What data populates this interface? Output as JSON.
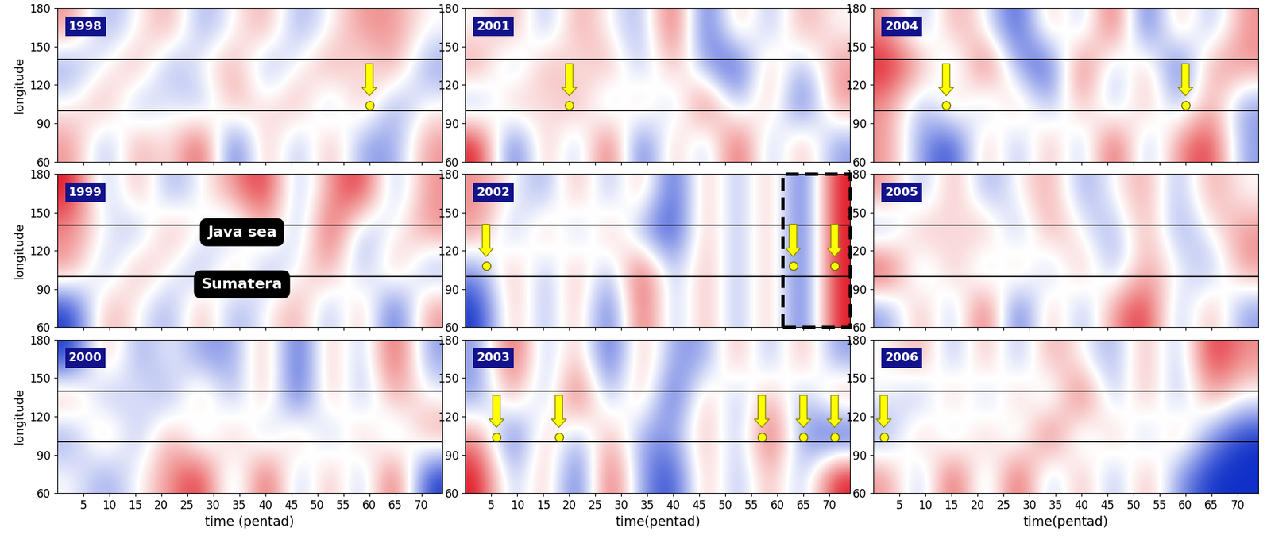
{
  "chart_data": [
    {
      "type": "heatmap",
      "title": "1998",
      "xlim": [
        0,
        74
      ],
      "ylim": [
        60,
        180
      ],
      "xticks": [
        5,
        10,
        15,
        20,
        25,
        30,
        35,
        40,
        45,
        50,
        55,
        60,
        65,
        70
      ],
      "yticks": [
        60,
        90,
        120,
        150,
        180
      ],
      "ylabel": "longitude",
      "tick_labels": "y",
      "clim": [
        -2,
        2
      ],
      "hlines": [
        100,
        140
      ],
      "events": [
        {
          "x": 60,
          "y": 104
        }
      ],
      "cells": [
        [
          1,
          -1,
          1,
          0,
          2,
          -2,
          1,
          -1,
          1,
          -1,
          -1,
          1
        ],
        [
          0,
          1,
          -1,
          0,
          -1,
          1,
          0,
          1,
          -1,
          1,
          -1,
          0
        ],
        [
          -1,
          0,
          1,
          -1,
          0,
          1,
          -1,
          0,
          1,
          0,
          1,
          -1
        ],
        [
          1,
          -1,
          0,
          1,
          -1,
          0,
          1,
          -1,
          0,
          1,
          1,
          0
        ]
      ]
    },
    {
      "type": "heatmap",
      "title": "2001",
      "xlim": [
        0,
        74
      ],
      "ylim": [
        60,
        180
      ],
      "xticks": [
        5,
        10,
        15,
        20,
        25,
        30,
        35,
        40,
        45,
        50,
        55,
        60,
        65,
        70
      ],
      "yticks": [
        60,
        90,
        120,
        150,
        180
      ],
      "tick_labels": "y",
      "clim": [
        -2,
        2
      ],
      "hlines": [
        100,
        140
      ],
      "events": [
        {
          "x": 20,
          "y": 104
        }
      ],
      "cells": [
        [
          2,
          -2,
          1,
          -1,
          2,
          -2,
          1,
          -1,
          2,
          -1,
          1,
          -1
        ],
        [
          -1,
          1,
          0,
          1,
          -1,
          1,
          -1,
          2,
          -1,
          1,
          -2,
          1
        ],
        [
          1,
          -1,
          1,
          0,
          1,
          -1,
          1,
          -1,
          -2,
          1,
          -1,
          1
        ],
        [
          0,
          1,
          -1,
          1,
          0,
          -1,
          2,
          -2,
          1,
          -1,
          1,
          0
        ]
      ]
    },
    {
      "type": "heatmap",
      "title": "2004",
      "xlim": [
        0,
        74
      ],
      "ylim": [
        60,
        180
      ],
      "xticks": [
        5,
        10,
        15,
        20,
        25,
        30,
        35,
        40,
        45,
        50,
        55,
        60,
        65,
        70
      ],
      "yticks": [
        60,
        90,
        120,
        150,
        180
      ],
      "tick_labels": "y",
      "clim": [
        -2,
        2
      ],
      "hlines": [
        100,
        140
      ],
      "events": [
        {
          "x": 14,
          "y": 104
        },
        {
          "x": 60,
          "y": 104
        }
      ],
      "cells": [
        [
          1,
          -1,
          -2,
          1,
          -1,
          1,
          -1,
          2,
          -1,
          1,
          2,
          -1
        ],
        [
          1,
          -1,
          1,
          -1,
          1,
          -1,
          1,
          -1,
          1,
          -1,
          1,
          -1
        ],
        [
          2,
          1,
          -1,
          2,
          -1,
          -2,
          2,
          -1,
          1,
          -2,
          1,
          1
        ],
        [
          1,
          -1,
          1,
          0,
          -2,
          1,
          -1,
          2,
          -2,
          1,
          -1,
          1
        ]
      ]
    },
    {
      "type": "heatmap",
      "title": "1999",
      "xlim": [
        0,
        74
      ],
      "ylim": [
        60,
        180
      ],
      "xticks": [
        5,
        10,
        15,
        20,
        25,
        30,
        35,
        40,
        45,
        50,
        55,
        60,
        65,
        70
      ],
      "yticks": [
        60,
        90,
        120,
        150,
        180
      ],
      "ylabel": "longitude",
      "tick_labels": "y",
      "clim": [
        -2,
        2
      ],
      "hlines": [
        100,
        140
      ],
      "annotations": [
        "Java sea",
        "Sumatera"
      ],
      "events": [],
      "cells": [
        [
          -2,
          1,
          0,
          -1,
          1,
          -1,
          0,
          1,
          -1,
          1,
          -2,
          1
        ],
        [
          1,
          -1,
          1,
          0,
          -1,
          1,
          -1,
          0,
          1,
          -1,
          1,
          -1
        ],
        [
          1,
          0,
          -1,
          1,
          0,
          -1,
          1,
          -1,
          2,
          -1,
          0,
          1
        ],
        [
          2,
          -1,
          1,
          -1,
          0,
          1,
          2,
          -1,
          1,
          2,
          -1,
          1
        ]
      ]
    },
    {
      "type": "heatmap",
      "title": "2002",
      "xlim": [
        0,
        74
      ],
      "ylim": [
        60,
        180
      ],
      "xticks": [
        5,
        10,
        15,
        20,
        25,
        30,
        35,
        40,
        45,
        50,
        55,
        60,
        65,
        70
      ],
      "yticks": [
        60,
        90,
        120,
        150,
        180
      ],
      "tick_labels": "y",
      "clim": [
        -2,
        2
      ],
      "hlines": [
        100,
        140
      ],
      "events": [
        {
          "x": 4,
          "y": 108
        },
        {
          "x": 63,
          "y": 108
        },
        {
          "x": 71,
          "y": 108
        }
      ],
      "highlight_x": [
        61,
        74
      ],
      "cells": [
        [
          -2,
          1,
          -1,
          1,
          -2,
          2,
          -1,
          1,
          -1,
          1,
          -2,
          2
        ],
        [
          -1,
          1,
          -1,
          1,
          -1,
          2,
          -1,
          1,
          -1,
          1,
          -2,
          2
        ],
        [
          1,
          -1,
          1,
          -1,
          1,
          -1,
          -2,
          1,
          -1,
          1,
          -2,
          2
        ],
        [
          1,
          0,
          -1,
          1,
          -1,
          1,
          -2,
          1,
          -1,
          1,
          -2,
          2
        ]
      ]
    },
    {
      "type": "heatmap",
      "title": "2005",
      "xlim": [
        0,
        74
      ],
      "ylim": [
        60,
        180
      ],
      "xticks": [
        5,
        10,
        15,
        20,
        25,
        30,
        35,
        40,
        45,
        50,
        55,
        60,
        65,
        70
      ],
      "yticks": [
        60,
        90,
        120,
        150,
        180
      ],
      "tick_labels": "y",
      "clim": [
        -2,
        2
      ],
      "hlines": [
        100,
        140
      ],
      "events": [],
      "cells": [
        [
          -1,
          1,
          -1,
          2,
          -2,
          1,
          -1,
          1,
          2,
          -1,
          1,
          -1
        ],
        [
          2,
          -1,
          1,
          -1,
          1,
          -1,
          1,
          -1,
          1,
          0,
          -1,
          1
        ],
        [
          -1,
          1,
          0,
          1,
          -1,
          1,
          0,
          -1,
          1,
          -1,
          0,
          1
        ],
        [
          1,
          -1,
          1,
          -1,
          0,
          1,
          -1,
          0,
          1,
          -1,
          1,
          0
        ]
      ]
    },
    {
      "type": "heatmap",
      "title": "2000",
      "xlim": [
        0,
        74
      ],
      "ylim": [
        60,
        180
      ],
      "xticks": [
        5,
        10,
        15,
        20,
        25,
        30,
        35,
        40,
        45,
        50,
        55,
        60,
        65,
        70
      ],
      "yticks": [
        60,
        90,
        120,
        150,
        180
      ],
      "xlabel": "time (pentad)",
      "ylabel": "longitude",
      "tick_labels": true,
      "clim": [
        -2,
        2
      ],
      "hlines": [
        100,
        140
      ],
      "events": [],
      "cells": [
        [
          0,
          -1,
          0,
          1,
          2,
          -1,
          2,
          -1,
          1,
          -1,
          2,
          -2
        ],
        [
          -1,
          1,
          -1,
          1,
          -1,
          1,
          -1,
          1,
          -1,
          1,
          -1,
          1
        ],
        [
          1,
          -1,
          0,
          -1,
          1,
          -1,
          1,
          -2,
          1,
          -1,
          1,
          0
        ],
        [
          -2,
          1,
          -1,
          0,
          -1,
          -1,
          1,
          -2,
          1,
          -1,
          2,
          -1
        ]
      ]
    },
    {
      "type": "heatmap",
      "title": "2003",
      "xlim": [
        0,
        74
      ],
      "ylim": [
        60,
        180
      ],
      "xticks": [
        5,
        10,
        15,
        20,
        25,
        30,
        35,
        40,
        45,
        50,
        55,
        60,
        65,
        70
      ],
      "yticks": [
        60,
        90,
        120,
        150,
        180
      ],
      "xlabel": "time(pentad)",
      "tick_labels": true,
      "clim": [
        -2,
        2
      ],
      "hlines": [
        100,
        140
      ],
      "events": [
        {
          "x": 6,
          "y": 104
        },
        {
          "x": 18,
          "y": 104
        },
        {
          "x": 57,
          "y": 104
        },
        {
          "x": 65,
          "y": 104
        },
        {
          "x": 71,
          "y": 104
        }
      ],
      "cells": [
        [
          2,
          -1,
          1,
          -2,
          2,
          -1,
          -2,
          1,
          -1,
          1,
          -1,
          2
        ],
        [
          1,
          -2,
          1,
          -1,
          1,
          -1,
          -1,
          1,
          -1,
          2,
          -1,
          -2
        ],
        [
          -1,
          1,
          -1,
          2,
          -1,
          1,
          -2,
          1,
          -1,
          1,
          -1,
          1
        ],
        [
          -1,
          2,
          -1,
          1,
          -2,
          1,
          -1,
          -1,
          1,
          -1,
          1,
          -1
        ]
      ]
    },
    {
      "type": "heatmap",
      "title": "2006",
      "xlim": [
        0,
        74
      ],
      "ylim": [
        60,
        180
      ],
      "xticks": [
        5,
        10,
        15,
        20,
        25,
        30,
        35,
        40,
        45,
        50,
        55,
        60,
        65,
        70
      ],
      "yticks": [
        60,
        90,
        120,
        150,
        180
      ],
      "xlabel": "time(pentad)",
      "tick_labels": true,
      "clim": [
        -2,
        2
      ],
      "hlines": [
        100,
        140
      ],
      "events": [
        {
          "x": 2,
          "y": 104
        }
      ],
      "cells": [
        [
          1,
          -1,
          2,
          -1,
          2,
          -1,
          1,
          -1,
          1,
          -1,
          -2,
          -2
        ],
        [
          -1,
          1,
          -1,
          1,
          -1,
          2,
          -1,
          1,
          -1,
          1,
          -1,
          -2
        ],
        [
          0,
          -1,
          1,
          -1,
          1,
          -1,
          2,
          -1,
          1,
          -1,
          1,
          0
        ],
        [
          0,
          1,
          -1,
          1,
          -1,
          1,
          0,
          -1,
          1,
          -1,
          2,
          1
        ]
      ]
    }
  ]
}
